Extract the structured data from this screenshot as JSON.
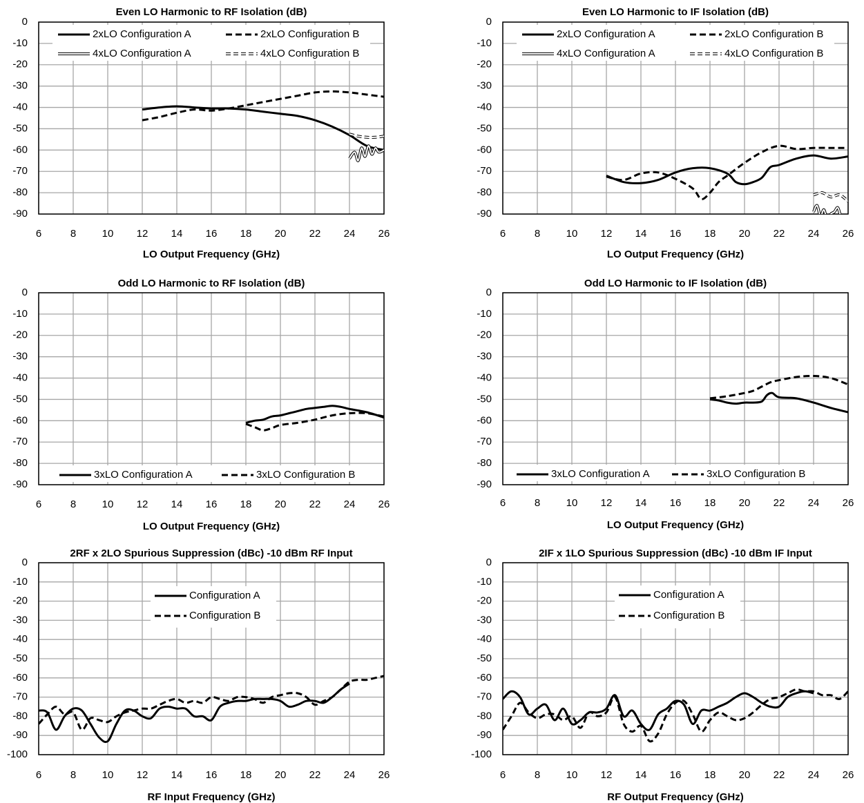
{
  "chart_data": [
    {
      "type": "line",
      "title": "Even LO Harmonic to RF Isolation (dB)",
      "xlabel": "LO Output Frequency (GHz)",
      "ylabel": "",
      "xlim": [
        6,
        26
      ],
      "ylim": [
        -90,
        0
      ],
      "xticks": [
        6,
        8,
        10,
        12,
        14,
        16,
        18,
        20,
        22,
        24,
        26
      ],
      "yticks": [
        0,
        -10,
        -20,
        -30,
        -40,
        -50,
        -60,
        -70,
        -80,
        -90
      ],
      "grid": true,
      "legend_position": "top",
      "series": [
        {
          "name": "2xLO Configuration A",
          "style": "solid-thick",
          "x": [
            12,
            13,
            14,
            15,
            16,
            17,
            18,
            19,
            20,
            21,
            22,
            23,
            24,
            25,
            26
          ],
          "y": [
            -41,
            -40,
            -39.5,
            -40,
            -40.5,
            -40.5,
            -41,
            -42,
            -43,
            -44,
            -46,
            -49,
            -53,
            -58,
            -60
          ]
        },
        {
          "name": "2xLO Configuration B",
          "style": "dashed-thick",
          "x": [
            12,
            13,
            14,
            15,
            16,
            17,
            18,
            19,
            20,
            21,
            22,
            23,
            24,
            25,
            26
          ],
          "y": [
            -46,
            -44.5,
            -42.5,
            -41,
            -41.5,
            -40.5,
            -39,
            -37.5,
            -36,
            -34.5,
            -33,
            -32.5,
            -33,
            -34,
            -35
          ]
        },
        {
          "name": "4xLO Configuration A",
          "style": "double-solid",
          "x": [
            24,
            24.3,
            24.5,
            24.7,
            24.9,
            25.1,
            25.3,
            25.5,
            25.7,
            26
          ],
          "y": [
            -64,
            -61,
            -65,
            -59,
            -63,
            -58,
            -62,
            -59,
            -61,
            -60
          ]
        },
        {
          "name": "4xLO Configuration B",
          "style": "double-dashed",
          "x": [
            24,
            24.5,
            25,
            25.5,
            26
          ],
          "y": [
            -52.5,
            -53.5,
            -54,
            -54,
            -53.5
          ]
        }
      ]
    },
    {
      "type": "line",
      "title": "Even LO Harmonic to IF Isolation (dB)",
      "xlabel": "LO Output Frequency (GHz)",
      "ylabel": "",
      "xlim": [
        6,
        26
      ],
      "ylim": [
        -90,
        0
      ],
      "xticks": [
        6,
        8,
        10,
        12,
        14,
        16,
        18,
        20,
        22,
        24,
        26
      ],
      "yticks": [
        0,
        -10,
        -20,
        -30,
        -40,
        -50,
        -60,
        -70,
        -80,
        -90
      ],
      "grid": true,
      "legend_position": "top",
      "series": [
        {
          "name": "2xLO Configuration A",
          "style": "solid-thick",
          "x": [
            12,
            13,
            14,
            15,
            16,
            17,
            18,
            19,
            19.5,
            20,
            20.5,
            21,
            21.5,
            22,
            23,
            24,
            25,
            26
          ],
          "y": [
            -72,
            -75,
            -75.5,
            -74,
            -70.5,
            -68.5,
            -68.5,
            -71,
            -75,
            -76,
            -75,
            -73,
            -68,
            -67,
            -64,
            -62.5,
            -64,
            -63
          ]
        },
        {
          "name": "2xLO Configuration B",
          "style": "dashed-thick",
          "x": [
            12,
            13,
            14,
            15,
            16,
            17,
            17.5,
            18,
            18.5,
            19,
            20,
            21,
            22,
            23,
            24,
            25,
            26
          ],
          "y": [
            -72.5,
            -74,
            -71,
            -70.5,
            -73.5,
            -78,
            -83,
            -80,
            -75,
            -72,
            -66,
            -61,
            -58,
            -59.5,
            -59,
            -59,
            -59
          ]
        },
        {
          "name": "4xLO Configuration A",
          "style": "double-solid",
          "x": [
            24,
            24.2,
            24.4,
            24.6,
            24.8,
            25,
            25.2,
            25.4,
            25.6,
            26
          ],
          "y": [
            -89,
            -86,
            -91,
            -88,
            -93,
            -90,
            -89,
            -87,
            -91,
            -92
          ]
        },
        {
          "name": "4xLO Configuration B",
          "style": "double-dashed",
          "x": [
            24,
            24.5,
            25,
            25.5,
            26
          ],
          "y": [
            -81,
            -80,
            -82,
            -81,
            -84
          ]
        }
      ]
    },
    {
      "type": "line",
      "title": "Odd LO Harmonic to RF Isolation (dB)",
      "xlabel": "LO Output Frequency (GHz)",
      "ylabel": "",
      "xlim": [
        6,
        26
      ],
      "ylim": [
        -90,
        0
      ],
      "xticks": [
        6,
        8,
        10,
        12,
        14,
        16,
        18,
        20,
        22,
        24,
        26
      ],
      "yticks": [
        0,
        -10,
        -20,
        -30,
        -40,
        -50,
        -60,
        -70,
        -80,
        -90
      ],
      "grid": true,
      "legend_position": "bottom",
      "series": [
        {
          "name": "3xLO Configuration A",
          "style": "solid-thick",
          "x": [
            18,
            18.5,
            19,
            19.5,
            20,
            20.5,
            21,
            21.5,
            22,
            22.5,
            23,
            23.5,
            24,
            25,
            26
          ],
          "y": [
            -61,
            -60,
            -59.5,
            -58,
            -57.5,
            -56.5,
            -55.5,
            -54.5,
            -54,
            -53.5,
            -53,
            -53.5,
            -54.5,
            -56,
            -58.5
          ]
        },
        {
          "name": "3xLO Configuration B",
          "style": "dashed-thick",
          "x": [
            18,
            18.5,
            19,
            19.5,
            20,
            21,
            22,
            23,
            24,
            25,
            26
          ],
          "y": [
            -61.5,
            -63,
            -64.5,
            -63.5,
            -62,
            -61,
            -59.5,
            -57.5,
            -56.5,
            -56.5,
            -58
          ]
        }
      ]
    },
    {
      "type": "line",
      "title": "Odd LO Harmonic to IF Isolation (dB)",
      "xlabel": "LO Output Frequency (GHz)",
      "ylabel": "",
      "xlim": [
        6,
        26
      ],
      "ylim": [
        -90,
        0
      ],
      "xticks": [
        6,
        8,
        10,
        12,
        14,
        16,
        18,
        20,
        22,
        24,
        26
      ],
      "yticks": [
        0,
        -10,
        -20,
        -30,
        -40,
        -50,
        -60,
        -70,
        -80,
        -90
      ],
      "grid": true,
      "legend_position": "bottom",
      "series": [
        {
          "name": "3xLO Configuration A",
          "style": "solid-thick",
          "x": [
            18,
            18.5,
            19,
            19.5,
            20,
            20.5,
            21,
            21.3,
            21.6,
            22,
            23,
            24,
            25,
            26
          ],
          "y": [
            -50,
            -50.5,
            -51.5,
            -52,
            -51.5,
            -51.5,
            -51,
            -48,
            -47,
            -49,
            -49.5,
            -51.5,
            -54,
            -56
          ]
        },
        {
          "name": "3xLO Configuration B",
          "style": "dashed-thick",
          "x": [
            18,
            19,
            20,
            20.5,
            21,
            21.5,
            22,
            23,
            24,
            25,
            26
          ],
          "y": [
            -49.5,
            -48.5,
            -47,
            -46,
            -44,
            -42,
            -41,
            -39.5,
            -39,
            -40,
            -43
          ]
        }
      ]
    },
    {
      "type": "line",
      "title": "2RF x 2LO Spurious Suppression (dBc) -10 dBm RF Input",
      "xlabel": "RF Input Frequency (GHz)",
      "ylabel": "",
      "xlim": [
        6,
        26
      ],
      "ylim": [
        -100,
        0
      ],
      "xticks": [
        6,
        8,
        10,
        12,
        14,
        16,
        18,
        20,
        22,
        24,
        26
      ],
      "yticks": [
        0,
        -10,
        -20,
        -30,
        -40,
        -50,
        -60,
        -70,
        -80,
        -90,
        -100
      ],
      "grid": true,
      "legend_position": "top-center",
      "series": [
        {
          "name": "Configuration A",
          "style": "solid-thick",
          "x": [
            6,
            6.5,
            7,
            7.5,
            8,
            8.5,
            9,
            9.5,
            10,
            10.5,
            11,
            11.5,
            12,
            12.5,
            13,
            13.5,
            14,
            14.5,
            15,
            15.5,
            16,
            16.5,
            17,
            17.5,
            18,
            18.5,
            19,
            19.5,
            20,
            20.5,
            21,
            21.5,
            22,
            22.5,
            23,
            23.5,
            24
          ],
          "y": [
            -77,
            -78,
            -87,
            -80,
            -76,
            -77,
            -84,
            -91,
            -93,
            -84,
            -77,
            -77,
            -80,
            -81,
            -76,
            -75,
            -76,
            -76,
            -80,
            -80,
            -82,
            -75,
            -73,
            -72,
            -72,
            -71,
            -71,
            -71,
            -72,
            -75,
            -74,
            -72,
            -72,
            -73,
            -70,
            -66,
            -63
          ]
        },
        {
          "name": "Configuration B",
          "style": "dashed-thick",
          "x": [
            6,
            6.5,
            7,
            7.5,
            8,
            8.5,
            9,
            9.5,
            10,
            10.5,
            11,
            11.5,
            12,
            12.5,
            13,
            13.5,
            14,
            14.5,
            15,
            15.5,
            16,
            16.5,
            17,
            17.5,
            18,
            18.5,
            19,
            19.5,
            20,
            20.5,
            21,
            21.5,
            22,
            22.5,
            23,
            23.5,
            24,
            24.5,
            25,
            25.5,
            26
          ],
          "y": [
            -84,
            -79,
            -75,
            -79,
            -78,
            -87,
            -81,
            -82,
            -83,
            -80,
            -78,
            -77,
            -76,
            -76,
            -74,
            -72,
            -71,
            -73,
            -72,
            -73,
            -70,
            -71,
            -72,
            -70,
            -70,
            -71,
            -73,
            -70,
            -69,
            -68,
            -68,
            -70,
            -74,
            -72,
            -70,
            -66,
            -62,
            -61,
            -61,
            -60,
            -59
          ]
        }
      ]
    },
    {
      "type": "line",
      "title": "2IF x 1LO Spurious Suppression (dBc) -10 dBm IF Input",
      "xlabel": "RF Output Frequency (GHz)",
      "ylabel": "",
      "xlim": [
        6,
        26
      ],
      "ylim": [
        -100,
        0
      ],
      "xticks": [
        6,
        8,
        10,
        12,
        14,
        16,
        18,
        20,
        22,
        24,
        26
      ],
      "yticks": [
        0,
        -10,
        -20,
        -30,
        -40,
        -50,
        -60,
        -70,
        -80,
        -90,
        -100
      ],
      "grid": true,
      "legend_position": "top-center",
      "series": [
        {
          "name": "Configuration A",
          "style": "solid-thick",
          "x": [
            6,
            6.5,
            7,
            7.5,
            8,
            8.5,
            9,
            9.5,
            10,
            10.5,
            11,
            11.5,
            12,
            12.5,
            13,
            13.5,
            14,
            14.5,
            15,
            15.5,
            16,
            16.5,
            17,
            17.5,
            18,
            18.5,
            19,
            19.5,
            20,
            20.5,
            21,
            21.5,
            22,
            22.5,
            23,
            23.5,
            24
          ],
          "y": [
            -71,
            -67,
            -70,
            -79,
            -76,
            -74,
            -82,
            -76,
            -84,
            -82,
            -78,
            -78,
            -76,
            -69,
            -80,
            -77,
            -84,
            -87,
            -79,
            -76,
            -72,
            -74,
            -84,
            -77,
            -77,
            -75,
            -73,
            -70,
            -68,
            -70,
            -73,
            -75,
            -75,
            -70,
            -68,
            -67,
            -68
          ]
        },
        {
          "name": "Configuration B",
          "style": "dashed-thick",
          "x": [
            6,
            6.5,
            7,
            7.5,
            8,
            8.5,
            9,
            9.5,
            10,
            10.5,
            11,
            11.5,
            12,
            12.5,
            13,
            13.5,
            14,
            14.5,
            15,
            15.5,
            16,
            16.5,
            17,
            17.5,
            18,
            18.5,
            19,
            19.5,
            20,
            20.5,
            21,
            21.5,
            22,
            22.5,
            23,
            23.5,
            24,
            24.5,
            25,
            25.5,
            26
          ],
          "y": [
            -87,
            -80,
            -73,
            -78,
            -81,
            -79,
            -79,
            -82,
            -80,
            -86,
            -78,
            -80,
            -78,
            -70,
            -84,
            -88,
            -85,
            -93,
            -89,
            -79,
            -73,
            -72,
            -79,
            -88,
            -82,
            -78,
            -80,
            -82,
            -81,
            -78,
            -74,
            -71,
            -70,
            -68,
            -66,
            -67,
            -67,
            -69,
            -69,
            -71,
            -67
          ]
        }
      ]
    }
  ]
}
